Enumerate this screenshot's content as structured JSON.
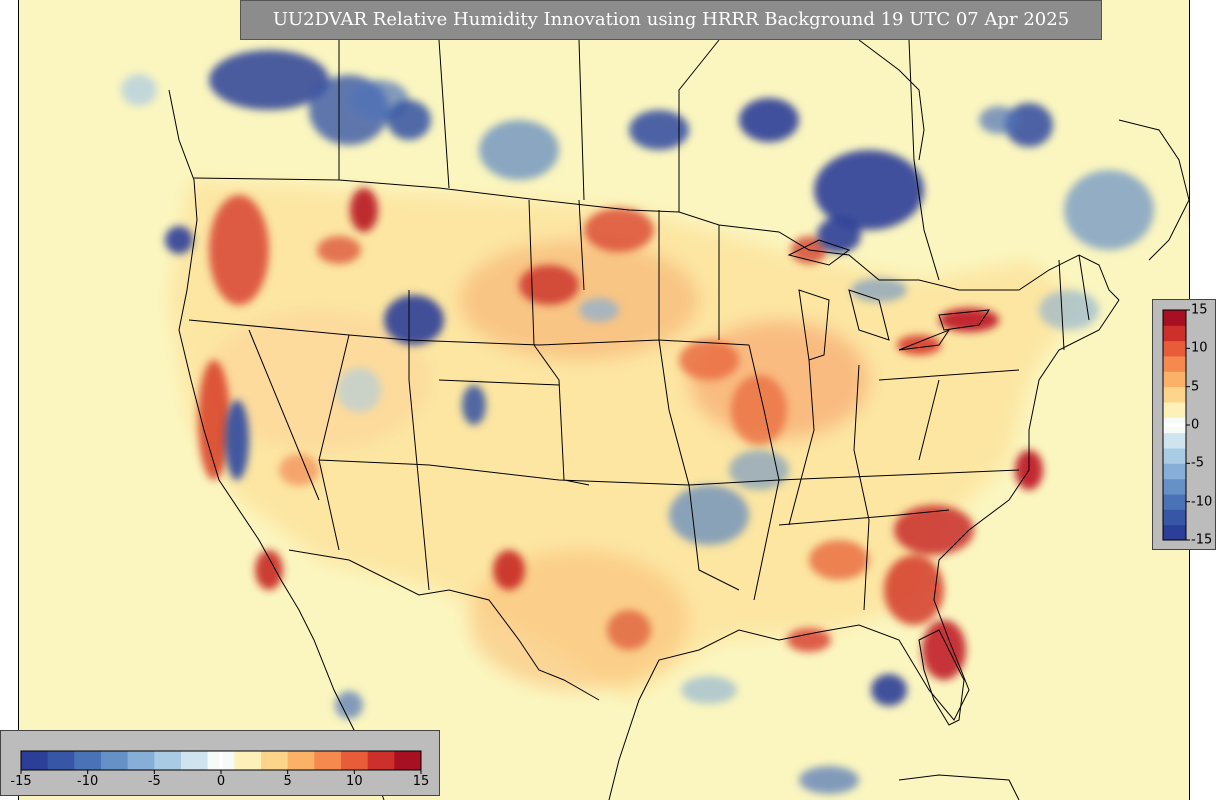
{
  "title": "UU2DVAR Relative Humidity Innovation using HRRR Background 19 UTC 07 Apr 2025",
  "colorbar": {
    "min": -15,
    "max": 15,
    "horizontal_labels": [
      "-15",
      "-10",
      "-5",
      "0",
      "5",
      "10",
      "15"
    ],
    "vertical_labels": [
      "15",
      "10",
      "5",
      "0",
      "-5",
      "-10",
      "-15"
    ],
    "colors": [
      "#2b3f98",
      "#3757a6",
      "#4a72b6",
      "#6691c7",
      "#86aed6",
      "#a9cbe4",
      "#cfe4ef",
      "#f6fbf8",
      "#fdf0b8",
      "#fdd58a",
      "#fbb268",
      "#f68a4e",
      "#e85c3a",
      "#cd302a",
      "#a70f22"
    ],
    "zero_color": "#ffffff"
  },
  "map": {
    "background_color": "#fbf6c0",
    "moist_color": "#2b3f98",
    "dry_color": "#b81a24"
  }
}
